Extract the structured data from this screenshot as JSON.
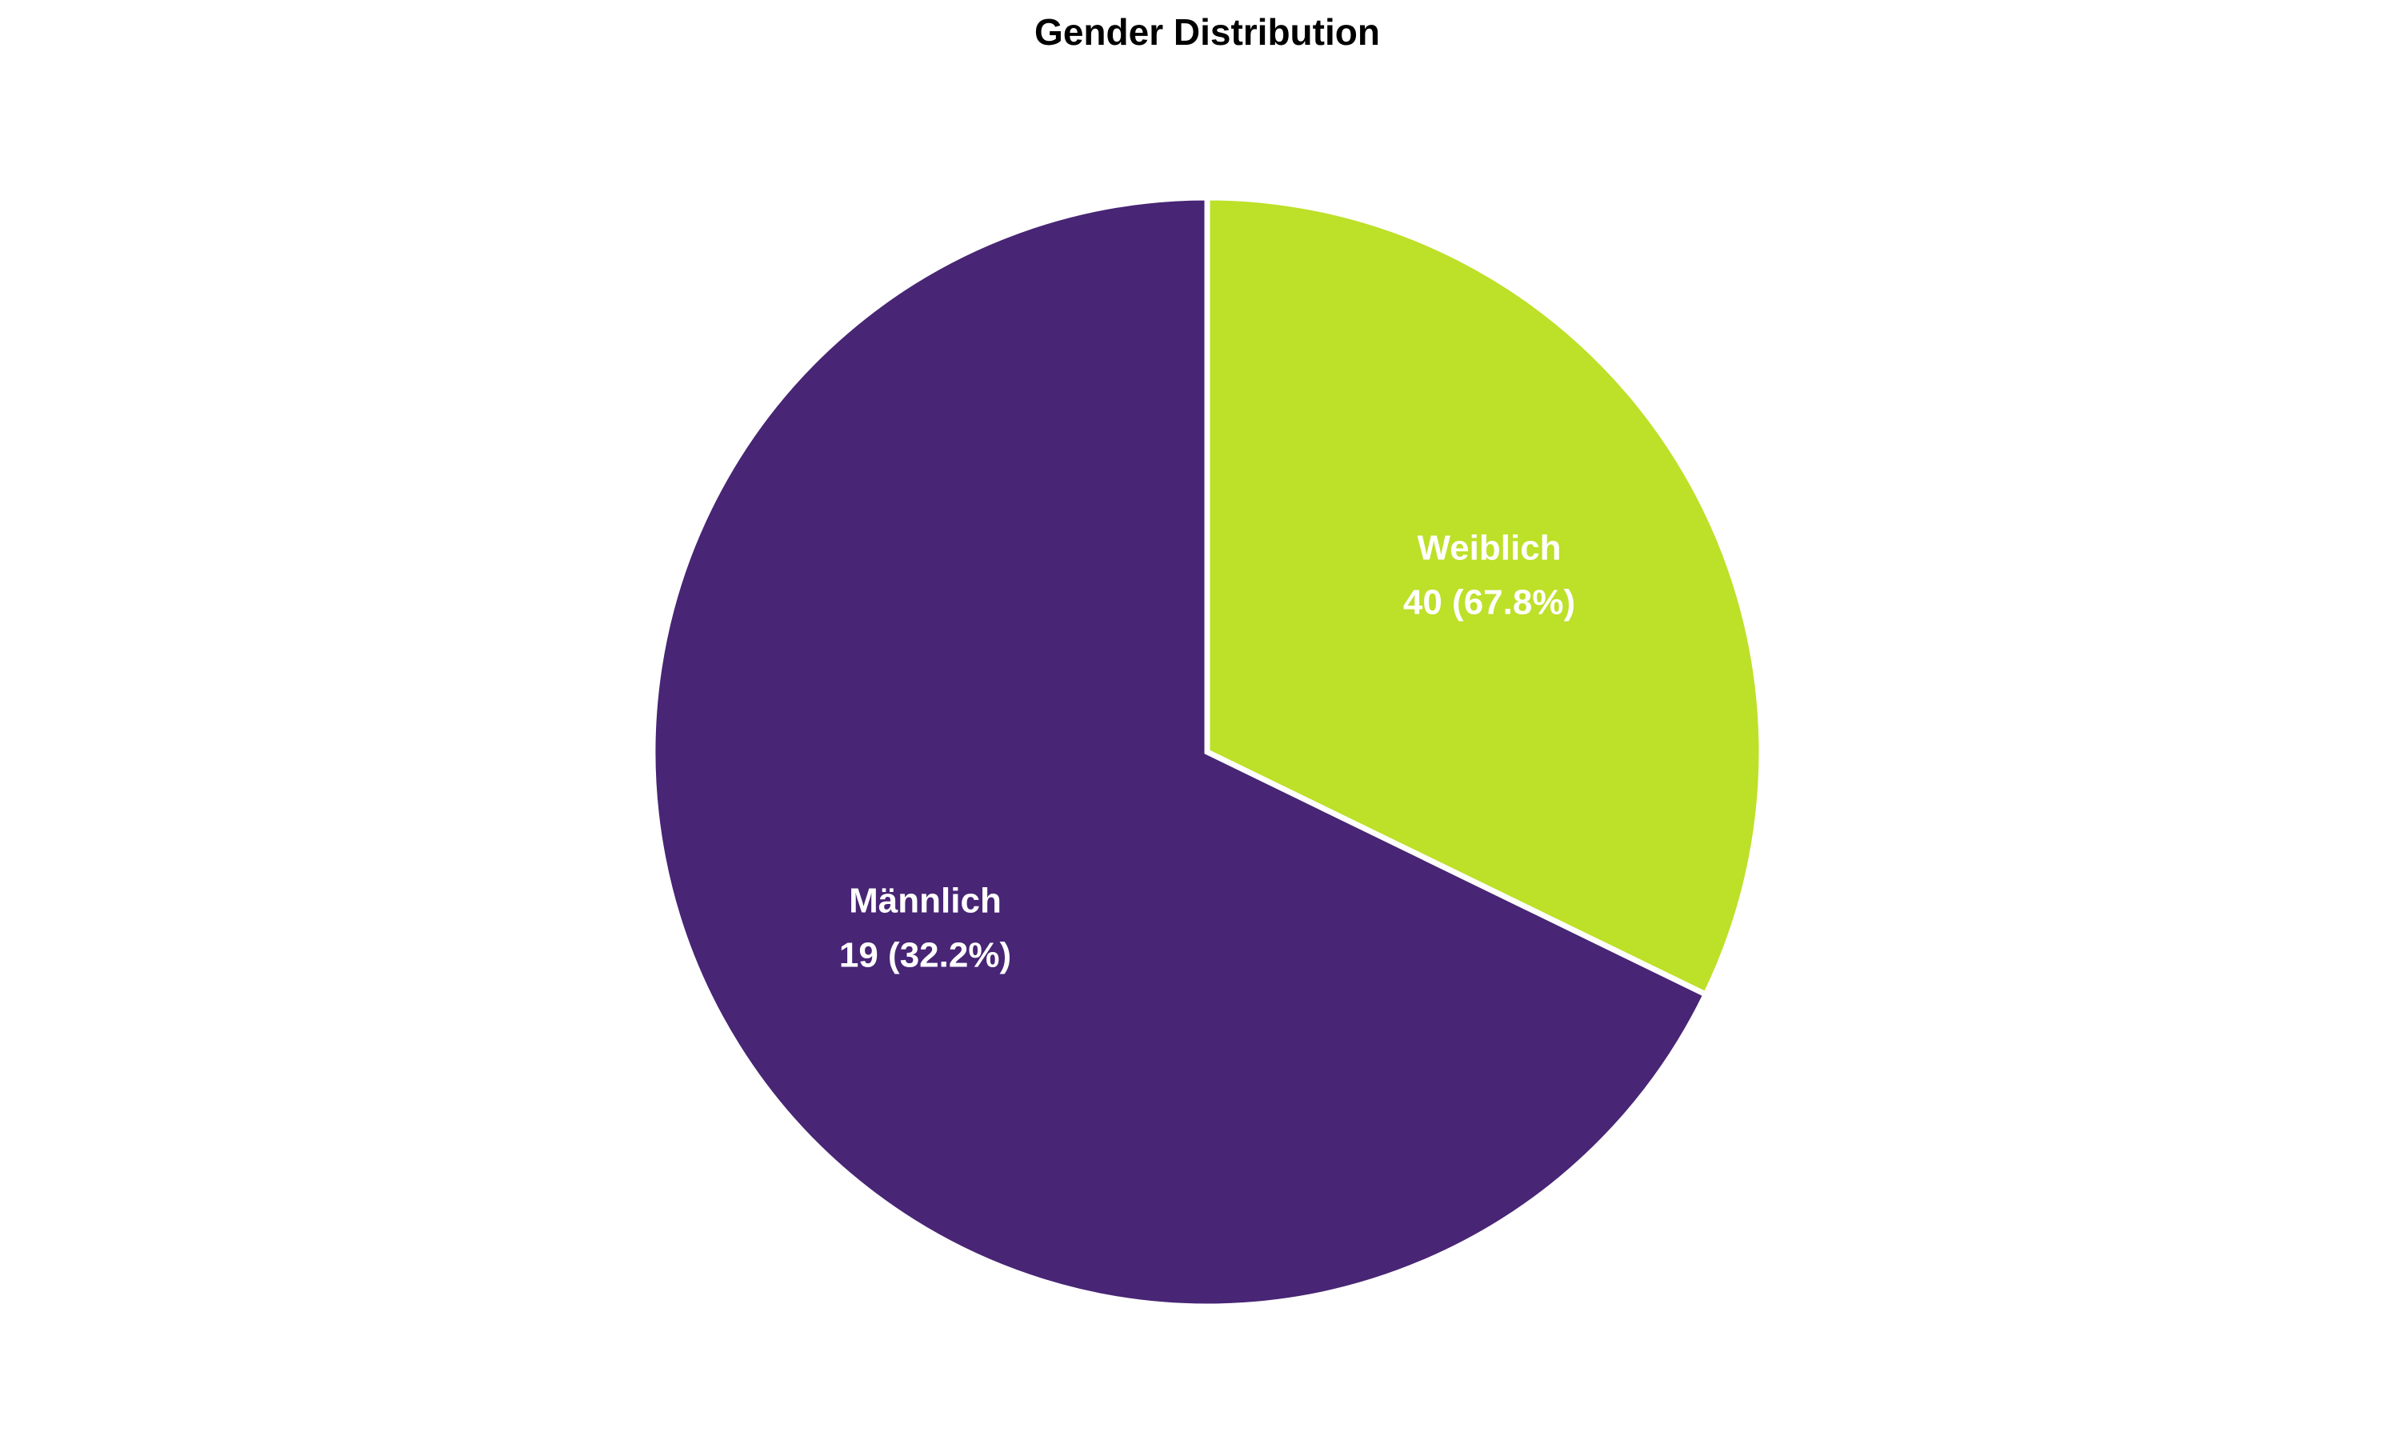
{
  "chart_data": {
    "type": "pie",
    "title": "Gender Distribution",
    "slices": [
      {
        "label": "Männlich",
        "value": 19,
        "percent_label": "19 (32.2%)",
        "color": "#bde028"
      },
      {
        "label": "Weiblich",
        "value": 40,
        "percent_label": "40 (67.8%)",
        "color": "#482575"
      }
    ],
    "edge_color": "#ffffff",
    "legend": "none"
  }
}
